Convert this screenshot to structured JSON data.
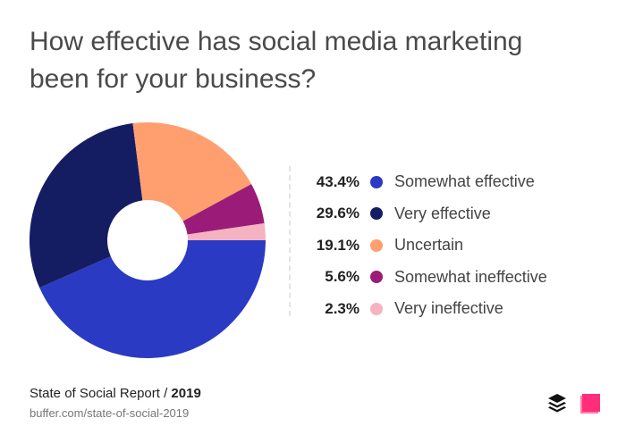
{
  "chart_data": {
    "type": "pie",
    "donut": true,
    "title": "How effective has social media marketing been for your business?",
    "categories": [
      "Somewhat effective",
      "Very effective",
      "Uncertain",
      "Somewhat ineffective",
      "Very ineffective"
    ],
    "values": [
      43.4,
      29.6,
      19.1,
      5.6,
      2.3
    ],
    "value_labels": [
      "43.4%",
      "29.6%",
      "19.1%",
      "5.6%",
      "2.3%"
    ],
    "colors": [
      "#2b3ac2",
      "#151d62",
      "#ff9f70",
      "#9a1c78",
      "#f5b3c1"
    ],
    "legend_placement": "right"
  },
  "footer": {
    "source_prefix": "State of Social Report / ",
    "source_year": "2019",
    "url": "buffer.com/state-of-social-2019",
    "logos": [
      "buffer-logo",
      "brand-logo"
    ]
  }
}
